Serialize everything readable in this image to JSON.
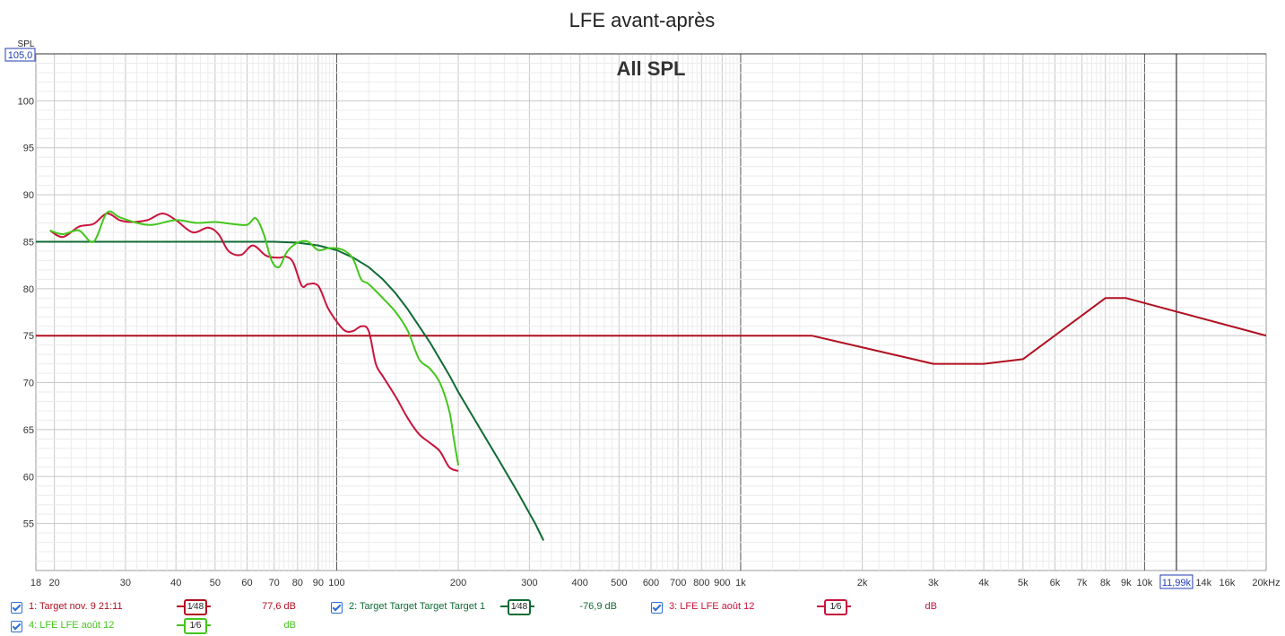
{
  "chart_data": {
    "type": "line",
    "title": "LFE avant-après",
    "subtitle": "All SPL",
    "ylabel": "SPL",
    "xscale": "log",
    "xlim": [
      18,
      20000
    ],
    "ylim": [
      50,
      105
    ],
    "y_cursor_readout": "105,0",
    "x_cursor_readout": "11,99k",
    "x_cursor_value": 11990,
    "x_ticks": [
      {
        "v": 18,
        "label": "18"
      },
      {
        "v": 20,
        "label": "20"
      },
      {
        "v": 30,
        "label": "30"
      },
      {
        "v": 40,
        "label": "40"
      },
      {
        "v": 50,
        "label": "50"
      },
      {
        "v": 60,
        "label": "60"
      },
      {
        "v": 70,
        "label": "70"
      },
      {
        "v": 80,
        "label": "80"
      },
      {
        "v": 90,
        "label": "90"
      },
      {
        "v": 100,
        "label": "100"
      },
      {
        "v": 200,
        "label": "200"
      },
      {
        "v": 300,
        "label": "300"
      },
      {
        "v": 400,
        "label": "400"
      },
      {
        "v": 500,
        "label": "500"
      },
      {
        "v": 600,
        "label": "600"
      },
      {
        "v": 700,
        "label": "700"
      },
      {
        "v": 800,
        "label": "800"
      },
      {
        "v": 900,
        "label": "900"
      },
      {
        "v": 1000,
        "label": "1k"
      },
      {
        "v": 2000,
        "label": "2k"
      },
      {
        "v": 3000,
        "label": "3k"
      },
      {
        "v": 4000,
        "label": "4k"
      },
      {
        "v": 5000,
        "label": "5k"
      },
      {
        "v": 6000,
        "label": "6k"
      },
      {
        "v": 7000,
        "label": "7k"
      },
      {
        "v": 8000,
        "label": "8k"
      },
      {
        "v": 9000,
        "label": "9k"
      },
      {
        "v": 10000,
        "label": "10k"
      },
      {
        "v": 14000,
        "label": "14k"
      },
      {
        "v": 16000,
        "label": "16k"
      },
      {
        "v": 20000,
        "label": "20kHz"
      }
    ],
    "y_ticks": [
      55,
      60,
      65,
      70,
      75,
      80,
      85,
      90,
      95,
      100
    ],
    "series": [
      {
        "name": "1: Target nov. 9 21:11",
        "color": "#b01020",
        "smoothing": "1/48",
        "value_label": "77,6 dB",
        "x": [
          18,
          1500,
          3000,
          4000,
          5000,
          8000,
          9000,
          20000
        ],
        "y": [
          75,
          75,
          72,
          72,
          72.5,
          79,
          79,
          75
        ]
      },
      {
        "name": "2: Target Target Target Target 1",
        "color": "#0f6b34",
        "smoothing": "1/48",
        "value_label": "-76,9 dB",
        "x": [
          18,
          60,
          70,
          80,
          90,
          100,
          110,
          120,
          130,
          140,
          150,
          160,
          170,
          180,
          190,
          200,
          220,
          250,
          280,
          310,
          325
        ],
        "y": [
          85,
          85,
          85,
          84.9,
          84.6,
          84.1,
          83.3,
          82.3,
          81,
          79.5,
          77.8,
          76,
          74.3,
          72.5,
          70.8,
          69,
          66,
          62,
          58.4,
          55,
          53.2
        ]
      },
      {
        "name": "3: LFE LFE août 12",
        "color": "#c8143c",
        "smoothing": "1/6",
        "value_label": "dB",
        "x": [
          19.5,
          21,
          23,
          25,
          27,
          29,
          31,
          34,
          37,
          40,
          44,
          48,
          51,
          54,
          58,
          62,
          67,
          72,
          75,
          78,
          82,
          85,
          90,
          95,
          100,
          105,
          110,
          115,
          120,
          125,
          130,
          140,
          150,
          160,
          170,
          180,
          190,
          200
        ],
        "y": [
          86.2,
          85.5,
          86.6,
          86.9,
          88,
          87.3,
          87.1,
          87.3,
          88,
          87.3,
          86,
          86.5,
          85.8,
          84,
          83.6,
          84.6,
          83.5,
          83.3,
          83.4,
          82.8,
          80.3,
          80.5,
          80.3,
          78,
          76.5,
          75.5,
          75.5,
          76,
          75.5,
          72,
          70.7,
          68.5,
          66.2,
          64.5,
          63.6,
          62.7,
          61,
          60.6
        ]
      },
      {
        "name": "4: LFE LFE août 12",
        "color": "#44c61c",
        "smoothing": "1/6",
        "value_label": "dB",
        "x": [
          19.5,
          21,
          23,
          25,
          27,
          29,
          32,
          35,
          40,
          45,
          50,
          55,
          60,
          63,
          66,
          69,
          72,
          75,
          78,
          81,
          85,
          90,
          95,
          100,
          105,
          110,
          115,
          120,
          130,
          140,
          150,
          160,
          170,
          180,
          190,
          195,
          200
        ],
        "y": [
          86.2,
          85.8,
          86.2,
          85,
          88.1,
          87.6,
          87,
          86.8,
          87.3,
          87,
          87.1,
          86.9,
          86.8,
          87.5,
          85.8,
          83,
          82.3,
          83.8,
          84.6,
          85,
          85,
          84.1,
          84.3,
          84.3,
          84,
          83.1,
          81,
          80.5,
          79,
          77.5,
          75.5,
          72.5,
          71.5,
          70,
          67,
          64,
          61.2
        ]
      }
    ]
  },
  "legend": [
    {
      "label": "1: Target nov. 9 21:11",
      "smoothing_num": "1⁄48",
      "value": "77,6 dB",
      "color": "#b01020"
    },
    {
      "label": "2: Target Target Target Target 1",
      "smoothing_num": "1⁄48",
      "value": "-76,9 dB",
      "color": "#0f6b34"
    },
    {
      "label": "3: LFE LFE août 12",
      "smoothing_num": "1⁄6",
      "value": "dB",
      "color": "#c8143c"
    },
    {
      "label": "4: LFE LFE août 12",
      "smoothing_num": "1⁄6",
      "value": "dB",
      "color": "#44c61c"
    }
  ]
}
